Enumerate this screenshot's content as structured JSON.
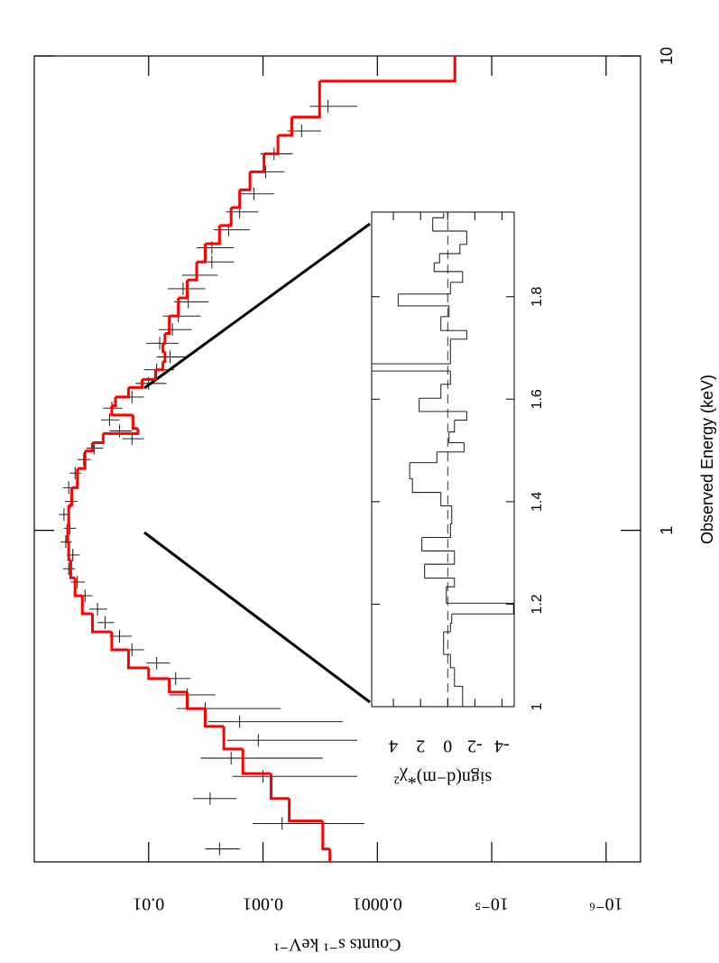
{
  "chart_data": [
    {
      "type": "spectrum",
      "x_label": "Observed Energy (keV)",
      "y_label": "Counts s⁻¹ keV⁻¹",
      "xlog": true,
      "ylog": true,
      "xlim": [
        0.2,
        10
      ],
      "ylim": [
        5e-07,
        0.1
      ],
      "xticks": [
        1,
        10
      ],
      "yticks": [
        {
          "value": 1e-06,
          "label": "10⁻⁶"
        },
        {
          "value": 1e-05,
          "label": "10⁻⁵"
        },
        0.0001,
        0.001,
        0.01
      ],
      "series": [
        {
          "kind": "data",
          "color": "#000000",
          "x": [
            0.213,
            0.241,
            0.272,
            0.303,
            0.331,
            0.361,
            0.395,
            0.421,
            0.45,
            0.487,
            0.525,
            0.56,
            0.598,
            0.639,
            0.682,
            0.728,
            0.778,
            0.83,
            0.887,
            0.946,
            1.01,
            1.08,
            1.15,
            1.23,
            1.32,
            1.41,
            1.49,
            1.56,
            1.62,
            1.71,
            1.81,
            1.91,
            2.04,
            2.18,
            2.32,
            2.48,
            2.65,
            2.83,
            3.03,
            3.23,
            3.45,
            3.68,
            3.94,
            4.3,
            4.69,
            5.12,
            5.7,
            6.22,
            6.95,
            7.83
          ],
          "values": [
            0.0024,
            0.00068,
            0.0029,
            0.001,
            0.0019,
            0.0011,
            0.0016,
            0.0032,
            0.0046,
            0.0058,
            0.0085,
            0.014,
            0.018,
            0.024,
            0.028,
            0.036,
            0.042,
            0.05,
            0.046,
            0.053,
            0.049,
            0.055,
            0.048,
            0.05,
            0.044,
            0.037,
            0.03,
            0.014,
            0.018,
            0.022,
            0.021,
            0.014,
            0.01,
            0.0085,
            0.0065,
            0.008,
            0.0062,
            0.0055,
            0.0045,
            0.005,
            0.0038,
            0.0028,
            0.0028,
            0.002,
            0.0016,
            0.0012,
            0.00095,
            0.0008,
            0.00046,
            0.00027
          ],
          "errors": [
            0.0008,
            0.00055,
            0.0012,
            0.00085,
            0.0016,
            0.00095,
            0.0014,
            0.0025,
            0.002,
            0.0015,
            0.002,
            0.003,
            0.004,
            0.004,
            0.005,
            0.005,
            0.006,
            0.006,
            0.006,
            0.006,
            0.006,
            0.006,
            0.006,
            0.006,
            0.005,
            0.005,
            0.005,
            0.003,
            0.004,
            0.004,
            0.004,
            0.003,
            0.003,
            0.0025,
            0.002,
            0.0025,
            0.002,
            0.002,
            0.0015,
            0.0018,
            0.0013,
            0.001,
            0.001,
            0.0007,
            0.0005,
            0.0004,
            0.0003,
            0.00025,
            0.00015,
            0.00012
          ]
        },
        {
          "kind": "model",
          "color": "#ff0000",
          "drawstyle": "steps",
          "x": [
            0.2,
            0.213,
            0.244,
            0.272,
            0.307,
            0.346,
            0.386,
            0.421,
            0.456,
            0.487,
            0.513,
            0.56,
            0.611,
            0.667,
            0.728,
            0.794,
            0.867,
            0.946,
            1.03,
            1.13,
            1.23,
            1.35,
            1.47,
            1.53,
            1.6,
            1.64,
            1.75,
            1.83,
            1.91,
            2.0,
            2.08,
            2.18,
            2.27,
            2.38,
            2.48,
            2.6,
            2.83,
            3.09,
            3.37,
            3.68,
            4.02,
            4.39,
            4.79,
            5.22,
            5.7,
            6.22,
            6.8,
            7.43,
            8.85
          ],
          "values": [
            0.00026,
            0.0003,
            0.00059,
            0.00085,
            0.0015,
            0.0022,
            0.0032,
            0.0046,
            0.0066,
            0.01,
            0.015,
            0.021,
            0.031,
            0.038,
            0.044,
            0.048,
            0.05,
            0.051,
            0.05,
            0.047,
            0.042,
            0.036,
            0.031,
            0.025,
            0.0124,
            0.0137,
            0.021,
            0.0195,
            0.015,
            0.0114,
            0.0087,
            0.0075,
            0.0072,
            0.0075,
            0.0072,
            0.0066,
            0.0055,
            0.0046,
            0.0038,
            0.0032,
            0.0024,
            0.0019,
            0.0016,
            0.0013,
            0.00098,
            0.00074,
            0.00056,
            0.00032,
            2.1e-05
          ]
        }
      ]
    },
    {
      "type": "histogram",
      "y_label": "sign(d−m)*χ²",
      "xlim": [
        1,
        1.965
      ],
      "ylim": [
        -4.9,
        5.6
      ],
      "xticks": [
        1,
        1.2,
        1.4,
        1.6,
        1.8
      ],
      "yticks": [
        -4,
        -2,
        0,
        2,
        4
      ],
      "zero_line": true,
      "color": "#000000",
      "bins": [
        1.0,
        1.04,
        1.076,
        1.102,
        1.146,
        1.163,
        1.181,
        1.202,
        1.234,
        1.251,
        1.278,
        1.304,
        1.33,
        1.357,
        1.392,
        1.418,
        1.445,
        1.476,
        1.497,
        1.515,
        1.536,
        1.559,
        1.576,
        1.602,
        1.629,
        1.655,
        1.669,
        1.69,
        1.717,
        1.734,
        1.761,
        1.782,
        1.805,
        1.828,
        1.849,
        1.866,
        1.884,
        1.902,
        1.928,
        1.954,
        1.963
      ],
      "values": [
        -1.1,
        -0.5,
        -0.2,
        0.3,
        -0.2,
        -0.3,
        -4.85,
        0.1,
        -0.5,
        1.7,
        -0.5,
        1.9,
        -0.2,
        -0.3,
        0.5,
        2.6,
        2.8,
        0.8,
        -1.2,
        -0.1,
        -0.5,
        -1.4,
        2.1,
        0.5,
        -0.2,
        5.6,
        -0.2,
        -0.2,
        -1.4,
        0.5,
        -0.1,
        3.65,
        -0.2,
        -1.1,
        1.0,
        0.6,
        -0.9,
        -1.4,
        1.1,
        0.3
      ]
    }
  ]
}
